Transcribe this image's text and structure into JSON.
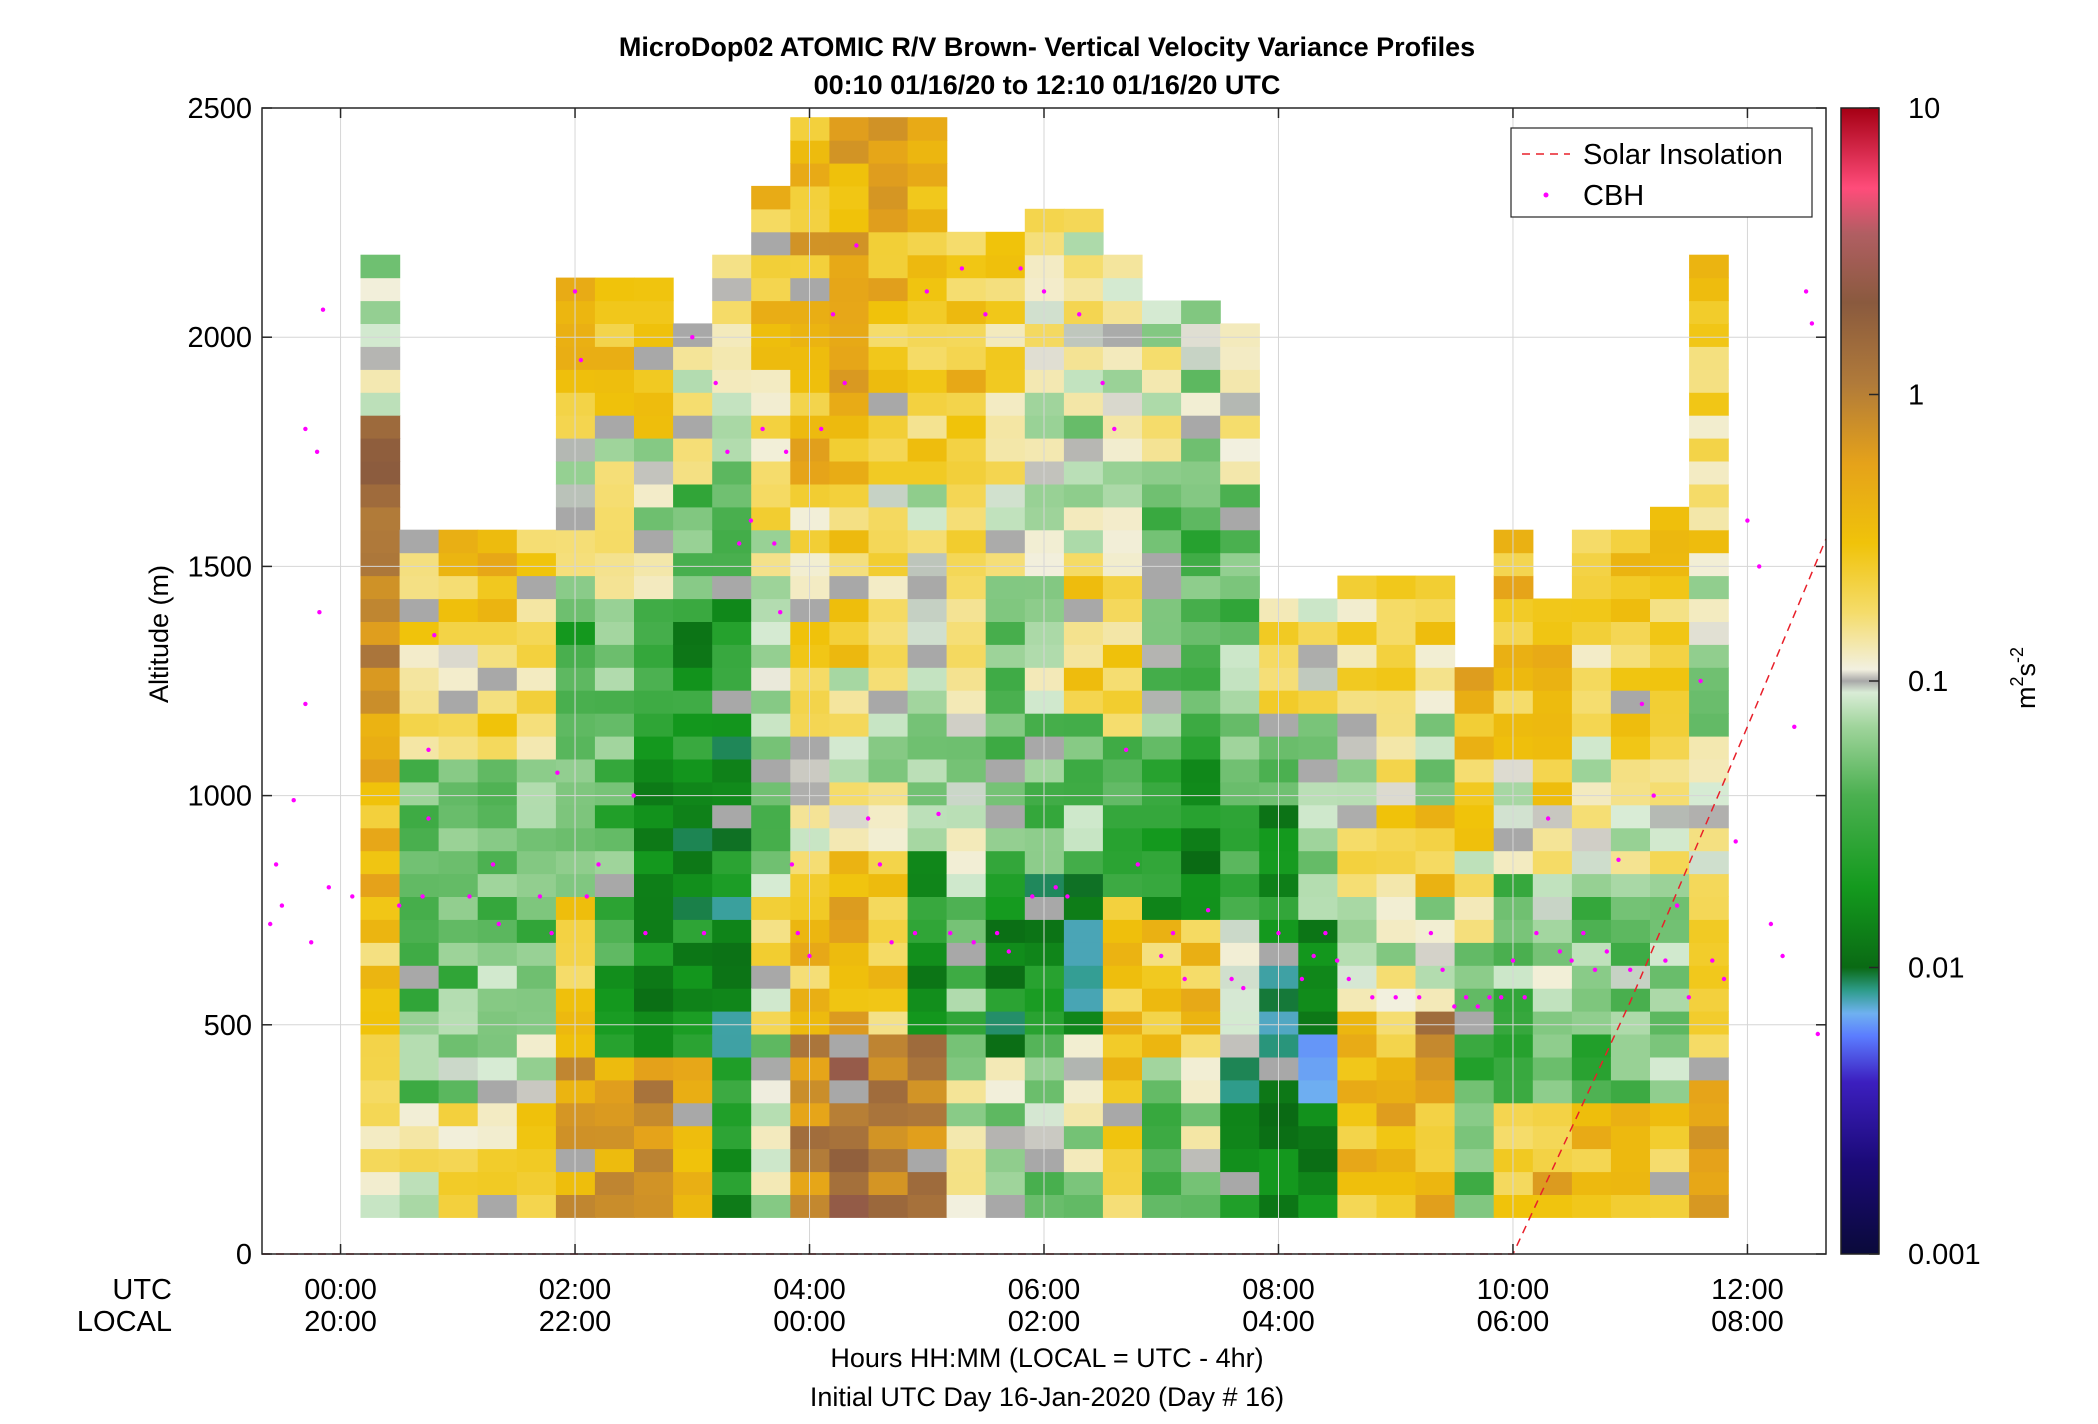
{
  "chart_data": {
    "type": "heatmap",
    "title": "MicroDop02 ATOMIC R/V Brown- Vertical Velocity Variance Profiles",
    "subtitle": "00:10 01/16/20 to 12:10 01/16/20  UTC",
    "ylabel": "Altitude (m)",
    "xlabel": "Hours HH:MM  (LOCAL = UTC - 4hr)",
    "xlabel2": "Initial UTC Day 16-Jan-2020 (Day # 16)",
    "row_labels": [
      "UTC",
      "LOCAL"
    ],
    "ylim": [
      0,
      2500
    ],
    "yticks": [
      "0",
      "500",
      "1000",
      "1500",
      "2000",
      "2500"
    ],
    "xlim": [
      -0.67,
      12.67
    ],
    "xticks_utc": [
      "00:00",
      "02:00",
      "04:00",
      "06:00",
      "08:00",
      "10:00",
      "12:00"
    ],
    "xticks_local": [
      "20:00",
      "22:00",
      "00:00",
      "02:00",
      "04:00",
      "06:00",
      "08:00"
    ],
    "grid": true,
    "colorbar": {
      "scale": "log",
      "range": [
        0.001,
        10
      ],
      "tick_labels": [
        "0.001",
        "0.01",
        "0.1",
        "1",
        "10"
      ],
      "label": "m²s⁻²",
      "label_base": "m",
      "label_exp1": "2",
      "label_mid": "s",
      "label_exp2": "-2"
    },
    "legend": {
      "placement": "top-right",
      "entries": [
        "Solar Insolation",
        "CBH"
      ]
    },
    "solar_insolation": [
      {
        "x": -0.67,
        "y": 0
      },
      {
        "x": 10.0,
        "y": 0
      },
      {
        "x": 11.0,
        "y": 550
      },
      {
        "x": 12.0,
        "y": 1150
      },
      {
        "x": 12.67,
        "y": 1560
      }
    ],
    "series": [
      {
        "name": "CBH",
        "points": [
          {
            "x": -0.6,
            "y": 720
          },
          {
            "x": -0.5,
            "y": 760
          },
          {
            "x": -0.55,
            "y": 850
          },
          {
            "x": -0.4,
            "y": 990
          },
          {
            "x": -0.3,
            "y": 1800
          },
          {
            "x": -0.2,
            "y": 1750
          },
          {
            "x": -0.15,
            "y": 2060
          },
          {
            "x": -0.18,
            "y": 1400
          },
          {
            "x": -0.3,
            "y": 1200
          },
          {
            "x": -0.25,
            "y": 680
          },
          {
            "x": -0.1,
            "y": 800
          },
          {
            "x": 0.1,
            "y": 780
          },
          {
            "x": 0.5,
            "y": 760
          },
          {
            "x": 0.7,
            "y": 780
          },
          {
            "x": 0.75,
            "y": 1100
          },
          {
            "x": 0.75,
            "y": 950
          },
          {
            "x": 0.8,
            "y": 1350
          },
          {
            "x": 1.1,
            "y": 780
          },
          {
            "x": 1.3,
            "y": 850
          },
          {
            "x": 1.35,
            "y": 720
          },
          {
            "x": 1.7,
            "y": 780
          },
          {
            "x": 1.8,
            "y": 700
          },
          {
            "x": 1.85,
            "y": 1050
          },
          {
            "x": 2.0,
            "y": 2100
          },
          {
            "x": 2.05,
            "y": 1950
          },
          {
            "x": 2.1,
            "y": 780
          },
          {
            "x": 2.2,
            "y": 850
          },
          {
            "x": 2.5,
            "y": 1000
          },
          {
            "x": 2.6,
            "y": 700
          },
          {
            "x": 3.0,
            "y": 2000
          },
          {
            "x": 3.2,
            "y": 1900
          },
          {
            "x": 3.1,
            "y": 700
          },
          {
            "x": 3.3,
            "y": 1750
          },
          {
            "x": 3.4,
            "y": 1550
          },
          {
            "x": 3.5,
            "y": 1600
          },
          {
            "x": 3.6,
            "y": 1800
          },
          {
            "x": 3.7,
            "y": 1550
          },
          {
            "x": 3.75,
            "y": 1400
          },
          {
            "x": 3.8,
            "y": 1750
          },
          {
            "x": 3.85,
            "y": 850
          },
          {
            "x": 3.9,
            "y": 700
          },
          {
            "x": 4.0,
            "y": 650
          },
          {
            "x": 4.1,
            "y": 1800
          },
          {
            "x": 4.2,
            "y": 2050
          },
          {
            "x": 4.3,
            "y": 1900
          },
          {
            "x": 4.4,
            "y": 2200
          },
          {
            "x": 4.5,
            "y": 950
          },
          {
            "x": 4.6,
            "y": 850
          },
          {
            "x": 4.7,
            "y": 680
          },
          {
            "x": 4.9,
            "y": 700
          },
          {
            "x": 5.0,
            "y": 2100
          },
          {
            "x": 5.1,
            "y": 960
          },
          {
            "x": 5.2,
            "y": 700
          },
          {
            "x": 5.3,
            "y": 2150
          },
          {
            "x": 5.4,
            "y": 680
          },
          {
            "x": 5.5,
            "y": 2050
          },
          {
            "x": 5.6,
            "y": 700
          },
          {
            "x": 5.7,
            "y": 660
          },
          {
            "x": 5.8,
            "y": 2150
          },
          {
            "x": 5.9,
            "y": 780
          },
          {
            "x": 6.0,
            "y": 2100
          },
          {
            "x": 6.1,
            "y": 800
          },
          {
            "x": 6.2,
            "y": 780
          },
          {
            "x": 6.3,
            "y": 2050
          },
          {
            "x": 6.5,
            "y": 1900
          },
          {
            "x": 6.6,
            "y": 1800
          },
          {
            "x": 6.7,
            "y": 1100
          },
          {
            "x": 6.8,
            "y": 850
          },
          {
            "x": 7.0,
            "y": 650
          },
          {
            "x": 7.1,
            "y": 700
          },
          {
            "x": 7.2,
            "y": 600
          },
          {
            "x": 7.4,
            "y": 750
          },
          {
            "x": 7.6,
            "y": 600
          },
          {
            "x": 7.7,
            "y": 580
          },
          {
            "x": 8.0,
            "y": 700
          },
          {
            "x": 8.2,
            "y": 600
          },
          {
            "x": 8.3,
            "y": 650
          },
          {
            "x": 8.4,
            "y": 700
          },
          {
            "x": 8.5,
            "y": 640
          },
          {
            "x": 8.6,
            "y": 600
          },
          {
            "x": 8.8,
            "y": 560
          },
          {
            "x": 9.0,
            "y": 560
          },
          {
            "x": 9.2,
            "y": 560
          },
          {
            "x": 9.3,
            "y": 700
          },
          {
            "x": 9.4,
            "y": 620
          },
          {
            "x": 9.5,
            "y": 540
          },
          {
            "x": 9.6,
            "y": 560
          },
          {
            "x": 9.7,
            "y": 540
          },
          {
            "x": 9.8,
            "y": 560
          },
          {
            "x": 9.9,
            "y": 560
          },
          {
            "x": 10.0,
            "y": 640
          },
          {
            "x": 10.1,
            "y": 560
          },
          {
            "x": 10.2,
            "y": 700
          },
          {
            "x": 10.3,
            "y": 950
          },
          {
            "x": 10.4,
            "y": 660
          },
          {
            "x": 10.5,
            "y": 640
          },
          {
            "x": 10.6,
            "y": 700
          },
          {
            "x": 10.7,
            "y": 620
          },
          {
            "x": 10.8,
            "y": 660
          },
          {
            "x": 10.9,
            "y": 860
          },
          {
            "x": 11.0,
            "y": 620
          },
          {
            "x": 11.1,
            "y": 1200
          },
          {
            "x": 11.2,
            "y": 1000
          },
          {
            "x": 11.3,
            "y": 640
          },
          {
            "x": 11.4,
            "y": 760
          },
          {
            "x": 11.5,
            "y": 560
          },
          {
            "x": 11.6,
            "y": 1250
          },
          {
            "x": 11.7,
            "y": 640
          },
          {
            "x": 11.8,
            "y": 600
          },
          {
            "x": 11.9,
            "y": 900
          },
          {
            "x": 12.0,
            "y": 1600
          },
          {
            "x": 12.1,
            "y": 1500
          },
          {
            "x": 12.2,
            "y": 720
          },
          {
            "x": 12.3,
            "y": 650
          },
          {
            "x": 12.4,
            "y": 1150
          },
          {
            "x": 12.5,
            "y": 2100
          },
          {
            "x": 12.55,
            "y": 2030
          },
          {
            "x": 12.6,
            "y": 480
          }
        ]
      }
    ],
    "profiles_x_start": 0.17,
    "profiles_step_hours": 0.3333,
    "profiles_bin_m": 50,
    "profiles": [
      {
        "top": 2180,
        "bands": [
          0.15,
          0.25,
          0.35,
          0.7,
          1.2,
          0.08
        ]
      },
      {
        "top": 1580,
        "bands": [
          0.12,
          0.05,
          0.03,
          0.06,
          0.2,
          0.25
        ]
      },
      {
        "top": 1580,
        "bands": [
          0.15,
          0.06,
          0.04,
          0.05,
          0.15,
          0.28
        ]
      },
      {
        "top": 1580,
        "bands": [
          0.2,
          0.08,
          0.05,
          0.06,
          0.18,
          0.3
        ]
      },
      {
        "top": 1580,
        "bands": [
          0.25,
          0.07,
          0.04,
          0.05,
          0.15,
          0.25
        ]
      },
      {
        "top": 2120,
        "bands": [
          0.5,
          0.3,
          0.04,
          0.03,
          0.1,
          0.35
        ]
      },
      {
        "top": 2120,
        "bands": [
          0.6,
          0.03,
          0.04,
          0.05,
          0.12,
          0.3
        ]
      },
      {
        "top": 2120,
        "bands": [
          0.7,
          0.015,
          0.02,
          0.03,
          0.08,
          0.25
        ]
      },
      {
        "top": 2050,
        "bands": [
          0.3,
          0.02,
          0.015,
          0.02,
          0.05,
          0.1
        ]
      },
      {
        "top": 2180,
        "bands": [
          0.02,
          0.012,
          0.015,
          0.02,
          0.06,
          0.12
        ]
      },
      {
        "top": 2350,
        "bands": [
          0.08,
          0.15,
          0.06,
          0.1,
          0.2,
          0.28
        ]
      },
      {
        "top": 2470,
        "bands": [
          0.8,
          0.3,
          0.15,
          0.2,
          0.35,
          0.4
        ]
      },
      {
        "top": 2500,
        "bands": [
          1.5,
          0.4,
          0.12,
          0.25,
          0.4,
          0.45
        ]
      },
      {
        "top": 2500,
        "bands": [
          1.2,
          0.25,
          0.1,
          0.15,
          0.3,
          0.4
        ]
      },
      {
        "top": 2480,
        "bands": [
          0.8,
          0.02,
          0.08,
          0.1,
          0.2,
          0.35
        ]
      },
      {
        "top": 2250,
        "bands": [
          0.1,
          0.05,
          0.08,
          0.12,
          0.2,
          0.3
        ]
      },
      {
        "top": 2240,
        "bands": [
          0.08,
          0.015,
          0.04,
          0.06,
          0.12,
          0.2
        ]
      },
      {
        "top": 2290,
        "bands": [
          0.06,
          0.015,
          0.05,
          0.1,
          0.1,
          0.15
        ]
      },
      {
        "top": 2260,
        "bands": [
          0.08,
          0.01,
          0.05,
          0.25,
          0.08,
          0.12
        ]
      },
      {
        "top": 2200,
        "bands": [
          0.3,
          0.3,
          0.03,
          0.2,
          0.1,
          0.1
        ]
      },
      {
        "top": 2080,
        "bands": [
          0.05,
          0.25,
          0.02,
          0.06,
          0.05,
          0.1
        ]
      },
      {
        "top": 2080,
        "bands": [
          0.08,
          0.3,
          0.015,
          0.04,
          0.04,
          0.08
        ]
      },
      {
        "top": 2020,
        "bands": [
          0.015,
          0.12,
          0.03,
          0.05,
          0.05,
          0.1
        ]
      },
      {
        "top": 1440,
        "bands": [
          0.015,
          0.01,
          0.012,
          0.02,
          0.06,
          0.2
        ]
      },
      {
        "top": 1440,
        "bands": [
          0.015,
          0.008,
          0.015,
          0.05,
          0.07,
          0.15
        ]
      },
      {
        "top": 1490,
        "bands": [
          0.3,
          0.5,
          0.08,
          0.15,
          0.1,
          0.2
        ]
      },
      {
        "top": 1490,
        "bands": [
          0.4,
          0.3,
          0.1,
          0.2,
          0.15,
          0.2
        ]
      },
      {
        "top": 1490,
        "bands": [
          0.35,
          0.8,
          0.08,
          0.3,
          0.08,
          0.2
        ]
      },
      {
        "top": 1280,
        "bands": [
          0.05,
          0.04,
          0.06,
          0.12,
          0.3,
          0.35
        ]
      },
      {
        "top": 1580,
        "bands": [
          0.3,
          0.03,
          0.05,
          0.1,
          0.3,
          0.35
        ]
      },
      {
        "top": 1420,
        "bands": [
          0.35,
          0.08,
          0.07,
          0.12,
          0.25,
          0.3
        ]
      },
      {
        "top": 1580,
        "bands": [
          0.3,
          0.04,
          0.05,
          0.1,
          0.15,
          0.25
        ]
      },
      {
        "top": 1580,
        "bands": [
          0.25,
          0.05,
          0.06,
          0.1,
          0.2,
          0.3
        ]
      },
      {
        "top": 1620,
        "bands": [
          0.3,
          0.08,
          0.05,
          0.15,
          0.25,
          0.28
        ]
      },
      {
        "top": 2180,
        "bands": [
          0.6,
          0.3,
          0.15,
          0.08,
          0.2,
          0.25
        ]
      }
    ]
  }
}
